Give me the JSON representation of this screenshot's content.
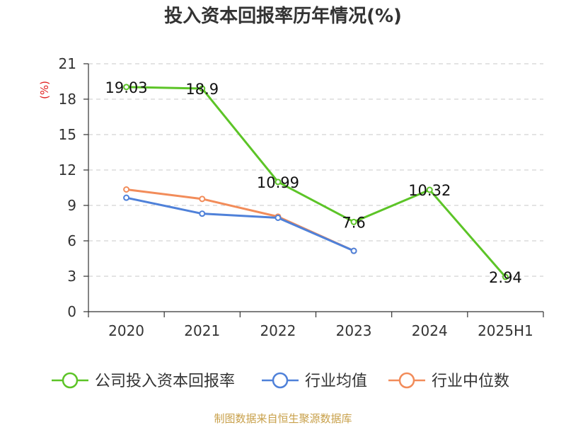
{
  "source_note": "制图数据来自恒生聚源数据库",
  "colors": {
    "company": "#5cc427",
    "industry_avg": "#4f81d9",
    "industry_median": "#f28c5a",
    "grid": "#c8c8c8",
    "axis": "#333333",
    "unit": "#e02020",
    "source": "#c8a04a"
  },
  "chart_data": {
    "type": "line",
    "title": "投入资本回报率历年情况(%)",
    "ylabel": "(%)",
    "xlabel": "",
    "categories": [
      "2020",
      "2021",
      "2022",
      "2023",
      "2024",
      "2025H1"
    ],
    "ylim": [
      0,
      21
    ],
    "yticks": [
      0,
      3,
      6,
      9,
      12,
      15,
      18,
      21
    ],
    "grid": true,
    "legend_position": "bottom",
    "series": [
      {
        "name": "公司投入资本回报率",
        "color_key": "company",
        "values": [
          19.03,
          18.9,
          10.99,
          7.6,
          10.32,
          2.94
        ],
        "labels": [
          "19.03",
          "18.9",
          "10.99",
          "7.6",
          "10.32",
          "2.94"
        ],
        "show_labels": true
      },
      {
        "name": "行业均值",
        "color_key": "industry_avg",
        "values": [
          9.65,
          8.3,
          7.95,
          5.15,
          null,
          null
        ],
        "show_labels": false
      },
      {
        "name": "行业中位数",
        "color_key": "industry_median",
        "values": [
          10.35,
          9.55,
          8.05,
          5.15,
          null,
          null
        ],
        "show_labels": false
      }
    ]
  }
}
